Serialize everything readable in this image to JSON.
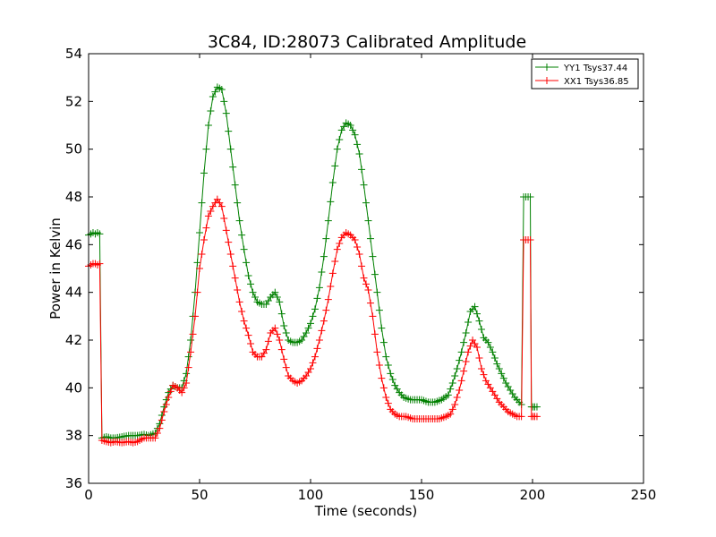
{
  "chart_data": {
    "type": "line",
    "title": "3C84, ID:28073 Calibrated Amplitude",
    "xlabel": "Time (seconds)",
    "ylabel": "Power in Kelvin",
    "xlim": [
      0,
      250
    ],
    "ylim": [
      36,
      54
    ],
    "xticks": [
      0,
      50,
      100,
      150,
      200,
      250
    ],
    "yticks": [
      36,
      38,
      40,
      42,
      44,
      46,
      48,
      50,
      52,
      54
    ],
    "grid": false,
    "legend_position": "top-right",
    "marker": "+",
    "series": [
      {
        "name": "YY1 Tsys37.44",
        "color": "#008000",
        "points": [
          [
            0,
            46.4
          ],
          [
            1,
            46.45
          ],
          [
            2,
            46.5
          ],
          [
            3,
            46.45
          ],
          [
            4,
            46.5
          ],
          [
            5,
            46.45
          ],
          [
            6,
            37.9
          ],
          [
            8,
            37.95
          ],
          [
            10,
            37.9
          ],
          [
            12,
            37.9
          ],
          [
            15,
            37.95
          ],
          [
            18,
            38.0
          ],
          [
            20,
            38.0
          ],
          [
            22,
            38.0
          ],
          [
            25,
            38.05
          ],
          [
            27,
            38.0
          ],
          [
            30,
            38.1
          ],
          [
            32,
            38.5
          ],
          [
            34,
            39.2
          ],
          [
            36,
            39.8
          ],
          [
            38,
            40.1
          ],
          [
            40,
            40.0
          ],
          [
            42,
            40.0
          ],
          [
            44,
            40.6
          ],
          [
            46,
            42.0
          ],
          [
            48,
            44.0
          ],
          [
            50,
            46.5
          ],
          [
            52,
            49.0
          ],
          [
            54,
            51.0
          ],
          [
            56,
            52.2
          ],
          [
            58,
            52.6
          ],
          [
            60,
            52.5
          ],
          [
            62,
            51.5
          ],
          [
            64,
            50.0
          ],
          [
            66,
            48.5
          ],
          [
            68,
            47.0
          ],
          [
            70,
            45.8
          ],
          [
            72,
            44.7
          ],
          [
            74,
            44.0
          ],
          [
            76,
            43.6
          ],
          [
            78,
            43.5
          ],
          [
            80,
            43.5
          ],
          [
            82,
            43.8
          ],
          [
            84,
            44.0
          ],
          [
            86,
            43.6
          ],
          [
            88,
            42.6
          ],
          [
            90,
            42.0
          ],
          [
            92,
            41.9
          ],
          [
            94,
            41.9
          ],
          [
            96,
            42.0
          ],
          [
            98,
            42.3
          ],
          [
            100,
            42.7
          ],
          [
            102,
            43.3
          ],
          [
            104,
            44.2
          ],
          [
            106,
            45.5
          ],
          [
            108,
            47.0
          ],
          [
            110,
            48.6
          ],
          [
            112,
            50.0
          ],
          [
            114,
            50.8
          ],
          [
            116,
            51.1
          ],
          [
            118,
            51.0
          ],
          [
            120,
            50.6
          ],
          [
            122,
            49.8
          ],
          [
            124,
            48.5
          ],
          [
            126,
            47.0
          ],
          [
            128,
            45.5
          ],
          [
            130,
            44.0
          ],
          [
            132,
            42.5
          ],
          [
            134,
            41.3
          ],
          [
            136,
            40.6
          ],
          [
            138,
            40.1
          ],
          [
            140,
            39.8
          ],
          [
            142,
            39.6
          ],
          [
            145,
            39.5
          ],
          [
            148,
            39.5
          ],
          [
            150,
            39.5
          ],
          [
            153,
            39.4
          ],
          [
            156,
            39.4
          ],
          [
            159,
            39.5
          ],
          [
            162,
            39.7
          ],
          [
            164,
            40.2
          ],
          [
            166,
            40.8
          ],
          [
            168,
            41.5
          ],
          [
            170,
            42.3
          ],
          [
            172,
            43.2
          ],
          [
            174,
            43.4
          ],
          [
            176,
            42.8
          ],
          [
            178,
            42.1
          ],
          [
            180,
            41.9
          ],
          [
            182,
            41.5
          ],
          [
            184,
            41.0
          ],
          [
            186,
            40.6
          ],
          [
            188,
            40.2
          ],
          [
            190,
            39.9
          ],
          [
            192,
            39.6
          ],
          [
            194,
            39.4
          ],
          [
            195,
            39.3
          ],
          [
            196,
            48.0
          ],
          [
            197,
            48.0
          ],
          [
            198,
            48.0
          ],
          [
            199,
            48.0
          ],
          [
            199.5,
            39.2
          ],
          [
            201,
            39.2
          ],
          [
            202,
            39.2
          ]
        ]
      },
      {
        "name": "XX1 Tsys36.85",
        "color": "#ff0000",
        "points": [
          [
            0,
            45.1
          ],
          [
            1,
            45.15
          ],
          [
            2,
            45.2
          ],
          [
            3,
            45.2
          ],
          [
            4,
            45.15
          ],
          [
            5,
            45.2
          ],
          [
            6,
            37.8
          ],
          [
            8,
            37.75
          ],
          [
            10,
            37.7
          ],
          [
            12,
            37.75
          ],
          [
            15,
            37.7
          ],
          [
            18,
            37.75
          ],
          [
            20,
            37.7
          ],
          [
            22,
            37.75
          ],
          [
            25,
            37.9
          ],
          [
            27,
            37.9
          ],
          [
            30,
            37.9
          ],
          [
            32,
            38.3
          ],
          [
            34,
            39.0
          ],
          [
            36,
            39.6
          ],
          [
            38,
            40.1
          ],
          [
            40,
            40.0
          ],
          [
            42,
            39.8
          ],
          [
            44,
            40.2
          ],
          [
            46,
            41.5
          ],
          [
            48,
            43.0
          ],
          [
            50,
            45.0
          ],
          [
            52,
            46.2
          ],
          [
            54,
            47.2
          ],
          [
            56,
            47.6
          ],
          [
            58,
            47.9
          ],
          [
            60,
            47.6
          ],
          [
            62,
            46.6
          ],
          [
            64,
            45.6
          ],
          [
            66,
            44.6
          ],
          [
            68,
            43.6
          ],
          [
            70,
            42.8
          ],
          [
            72,
            42.2
          ],
          [
            74,
            41.5
          ],
          [
            76,
            41.3
          ],
          [
            78,
            41.3
          ],
          [
            80,
            41.6
          ],
          [
            82,
            42.3
          ],
          [
            84,
            42.5
          ],
          [
            86,
            42.0
          ],
          [
            88,
            41.2
          ],
          [
            90,
            40.5
          ],
          [
            92,
            40.3
          ],
          [
            94,
            40.2
          ],
          [
            96,
            40.3
          ],
          [
            98,
            40.5
          ],
          [
            100,
            40.8
          ],
          [
            102,
            41.3
          ],
          [
            104,
            42.0
          ],
          [
            106,
            42.8
          ],
          [
            108,
            43.7
          ],
          [
            110,
            44.8
          ],
          [
            112,
            45.8
          ],
          [
            114,
            46.3
          ],
          [
            116,
            46.5
          ],
          [
            118,
            46.4
          ],
          [
            120,
            46.2
          ],
          [
            122,
            45.6
          ],
          [
            124,
            44.6
          ],
          [
            126,
            44.1
          ],
          [
            128,
            43.0
          ],
          [
            130,
            41.5
          ],
          [
            132,
            40.4
          ],
          [
            134,
            39.6
          ],
          [
            136,
            39.1
          ],
          [
            138,
            38.9
          ],
          [
            140,
            38.8
          ],
          [
            143,
            38.8
          ],
          [
            146,
            38.7
          ],
          [
            149,
            38.7
          ],
          [
            152,
            38.7
          ],
          [
            155,
            38.7
          ],
          [
            158,
            38.7
          ],
          [
            161,
            38.8
          ],
          [
            163,
            38.9
          ],
          [
            165,
            39.3
          ],
          [
            167,
            39.9
          ],
          [
            169,
            40.7
          ],
          [
            171,
            41.5
          ],
          [
            173,
            42.0
          ],
          [
            175,
            41.7
          ],
          [
            177,
            40.8
          ],
          [
            179,
            40.3
          ],
          [
            181,
            40.0
          ],
          [
            183,
            39.7
          ],
          [
            185,
            39.4
          ],
          [
            187,
            39.2
          ],
          [
            189,
            39.0
          ],
          [
            191,
            38.9
          ],
          [
            193,
            38.8
          ],
          [
            195,
            38.8
          ],
          [
            196,
            46.2
          ],
          [
            197,
            46.2
          ],
          [
            198,
            46.2
          ],
          [
            199,
            46.2
          ],
          [
            199.5,
            38.8
          ],
          [
            201,
            38.8
          ],
          [
            202,
            38.8
          ]
        ]
      }
    ]
  }
}
